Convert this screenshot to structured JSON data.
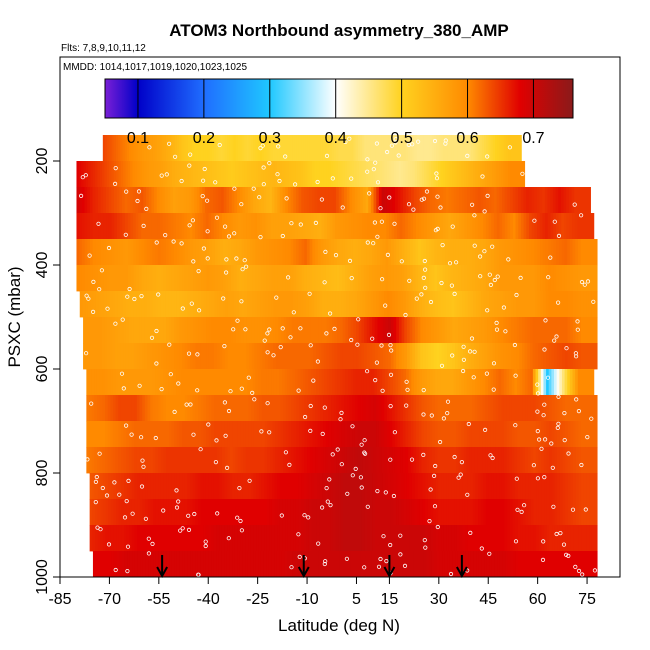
{
  "chart_data": {
    "type": "heatmap",
    "title": "ATOM3 Northbound asymmetry_380_AMP",
    "flights_label": "Flts: 7,8,9,10,11,12",
    "dates_label": "MMDD: 1014,1017,1019,1020,1023,1025",
    "xlabel": "Latitude (deg N)",
    "ylabel": "PSXC (mbar)",
    "xlim": [
      -85,
      85
    ],
    "ylim": [
      1000,
      0
    ],
    "x_ticks": [
      -85,
      -70,
      -55,
      -40,
      -25,
      -10,
      5,
      15,
      30,
      45,
      60,
      75
    ],
    "y_ticks": [
      200,
      400,
      600,
      800,
      1000
    ],
    "colorbar": {
      "range": [
        0.05,
        0.76
      ],
      "ticks": [
        0.1,
        0.2,
        0.3,
        0.4,
        0.5,
        0.6,
        0.7
      ],
      "stops": [
        {
          "v": 0.05,
          "color": "#7a1fd6"
        },
        {
          "v": 0.1,
          "color": "#0000c8"
        },
        {
          "v": 0.2,
          "color": "#1f6dff"
        },
        {
          "v": 0.3,
          "color": "#1fc8ff"
        },
        {
          "v": 0.4,
          "color": "#ffffff"
        },
        {
          "v": 0.5,
          "color": "#ffd21f"
        },
        {
          "v": 0.6,
          "color": "#ff8a00"
        },
        {
          "v": 0.68,
          "color": "#e00000"
        },
        {
          "v": 0.76,
          "color": "#8b1a1a"
        }
      ]
    },
    "pressure_levels": [
      175,
      225,
      275,
      325,
      375,
      425,
      475,
      525,
      575,
      625,
      675,
      725,
      775,
      825,
      875,
      925,
      975
    ],
    "level_extents": [
      [
        -72,
        55
      ],
      [
        -80,
        56
      ],
      [
        -80,
        76
      ],
      [
        -80,
        77
      ],
      [
        -80,
        78
      ],
      [
        -80,
        78
      ],
      [
        -79,
        78
      ],
      [
        -78,
        78
      ],
      [
        -78,
        78
      ],
      [
        -77,
        77
      ],
      [
        -77,
        78
      ],
      [
        -77,
        78
      ],
      [
        -77,
        78
      ],
      [
        -76,
        78
      ],
      [
        -76,
        78
      ],
      [
        -76,
        78
      ],
      [
        -75,
        78
      ]
    ],
    "arrows_latitude": [
      -54,
      -11,
      15,
      37
    ],
    "values": [
      [
        0.64,
        0.62,
        0.6,
        0.58,
        0.57,
        0.55,
        0.52,
        0.5,
        0.5,
        0.49,
        0.5,
        0.49,
        0.5,
        0.49,
        0.49,
        0.49,
        0.49,
        0.49,
        0.48,
        0.48,
        0.46,
        0.46,
        0.46,
        0.46,
        0.45,
        0.45,
        0.46,
        0.46,
        0.46,
        0.48,
        0.5,
        0.52
      ],
      [
        0.68,
        0.66,
        0.64,
        0.62,
        0.6,
        0.58,
        0.57,
        0.55,
        0.54,
        0.53,
        0.52,
        0.51,
        0.52,
        0.53,
        0.54,
        0.53,
        0.52,
        0.5,
        0.5,
        0.49,
        0.48,
        0.47,
        0.46,
        0.45,
        0.46,
        0.48,
        0.5,
        0.52,
        0.54,
        0.56,
        0.58,
        0.6
      ],
      [
        0.69,
        0.66,
        0.64,
        0.62,
        0.63,
        0.6,
        0.57,
        0.58,
        0.62,
        0.63,
        0.6,
        0.56,
        0.54,
        0.6,
        0.63,
        0.64,
        0.64,
        0.6,
        0.56,
        0.7,
        0.67,
        0.64,
        0.62,
        0.61,
        0.62,
        0.63,
        0.62,
        0.64,
        0.66,
        0.65,
        0.67,
        0.65
      ],
      [
        0.67,
        0.66,
        0.66,
        0.64,
        0.62,
        0.62,
        0.61,
        0.6,
        0.62,
        0.6,
        0.58,
        0.59,
        0.57,
        0.57,
        0.56,
        0.55,
        0.58,
        0.59,
        0.6,
        0.6,
        0.62,
        0.6,
        0.58,
        0.56,
        0.58,
        0.6,
        0.62,
        0.6,
        0.64,
        0.66,
        0.64,
        0.65
      ],
      [
        0.62,
        0.6,
        0.59,
        0.58,
        0.6,
        0.61,
        0.6,
        0.58,
        0.57,
        0.55,
        0.56,
        0.58,
        0.59,
        0.6,
        0.62,
        0.58,
        0.56,
        0.55,
        0.56,
        0.58,
        0.55,
        0.52,
        0.54,
        0.55,
        0.55,
        0.56,
        0.58,
        0.59,
        0.6,
        0.61,
        0.62,
        0.6
      ],
      [
        0.6,
        0.59,
        0.58,
        0.58,
        0.56,
        0.55,
        0.56,
        0.57,
        0.58,
        0.57,
        0.55,
        0.56,
        0.57,
        0.57,
        0.55,
        0.54,
        0.53,
        0.55,
        0.57,
        0.58,
        0.57,
        0.54,
        0.52,
        0.54,
        0.55,
        0.56,
        0.58,
        0.58,
        0.58,
        0.6,
        0.59,
        0.58
      ],
      [
        0.58,
        0.57,
        0.56,
        0.55,
        0.55,
        0.54,
        0.54,
        0.55,
        0.56,
        0.57,
        0.56,
        0.57,
        0.58,
        0.58,
        0.57,
        0.55,
        0.55,
        0.56,
        0.58,
        0.6,
        0.58,
        0.55,
        0.53,
        0.52,
        0.54,
        0.56,
        0.57,
        0.58,
        0.58,
        0.6,
        0.6,
        0.59
      ],
      [
        0.58,
        0.58,
        0.57,
        0.56,
        0.56,
        0.56,
        0.58,
        0.59,
        0.6,
        0.6,
        0.59,
        0.59,
        0.6,
        0.61,
        0.61,
        0.61,
        0.62,
        0.64,
        0.67,
        0.7,
        0.64,
        0.6,
        0.58,
        0.56,
        0.57,
        0.58,
        0.6,
        0.61,
        0.62,
        0.62,
        0.62,
        0.6
      ],
      [
        0.58,
        0.58,
        0.57,
        0.57,
        0.58,
        0.59,
        0.6,
        0.61,
        0.61,
        0.6,
        0.6,
        0.61,
        0.62,
        0.62,
        0.62,
        0.63,
        0.64,
        0.64,
        0.63,
        0.62,
        0.58,
        0.52,
        0.5,
        0.52,
        0.55,
        0.57,
        0.59,
        0.6,
        0.62,
        0.63,
        0.64,
        0.63
      ],
      [
        0.59,
        0.59,
        0.58,
        0.58,
        0.58,
        0.59,
        0.6,
        0.6,
        0.6,
        0.6,
        0.6,
        0.61,
        0.61,
        0.62,
        0.63,
        0.64,
        0.65,
        0.66,
        0.66,
        0.64,
        0.62,
        0.58,
        0.56,
        0.56,
        0.58,
        0.6,
        0.62,
        0.6,
        0.62,
        0.3,
        0.46,
        0.6
      ],
      [
        0.61,
        0.62,
        0.64,
        0.64,
        0.61,
        0.6,
        0.6,
        0.61,
        0.62,
        0.62,
        0.62,
        0.63,
        0.63,
        0.64,
        0.65,
        0.66,
        0.67,
        0.68,
        0.69,
        0.67,
        0.65,
        0.63,
        0.62,
        0.62,
        0.62,
        0.63,
        0.64,
        0.64,
        0.64,
        0.63,
        0.62,
        0.62
      ],
      [
        0.6,
        0.6,
        0.61,
        0.62,
        0.62,
        0.62,
        0.63,
        0.63,
        0.64,
        0.64,
        0.64,
        0.64,
        0.65,
        0.66,
        0.67,
        0.68,
        0.69,
        0.7,
        0.7,
        0.68,
        0.66,
        0.64,
        0.63,
        0.63,
        0.64,
        0.64,
        0.64,
        0.63,
        0.63,
        0.64,
        0.63,
        0.62
      ],
      [
        0.61,
        0.62,
        0.63,
        0.64,
        0.64,
        0.65,
        0.65,
        0.65,
        0.65,
        0.64,
        0.65,
        0.65,
        0.66,
        0.67,
        0.68,
        0.69,
        0.7,
        0.71,
        0.7,
        0.69,
        0.68,
        0.66,
        0.65,
        0.65,
        0.66,
        0.66,
        0.66,
        0.65,
        0.64,
        0.65,
        0.64,
        0.63
      ],
      [
        0.63,
        0.64,
        0.65,
        0.66,
        0.66,
        0.66,
        0.66,
        0.67,
        0.67,
        0.66,
        0.66,
        0.67,
        0.68,
        0.68,
        0.69,
        0.7,
        0.71,
        0.71,
        0.7,
        0.69,
        0.68,
        0.67,
        0.66,
        0.66,
        0.66,
        0.67,
        0.67,
        0.66,
        0.66,
        0.66,
        0.65,
        0.64
      ],
      [
        0.64,
        0.65,
        0.66,
        0.66,
        0.67,
        0.67,
        0.67,
        0.68,
        0.68,
        0.68,
        0.68,
        0.68,
        0.69,
        0.69,
        0.7,
        0.7,
        0.71,
        0.71,
        0.7,
        0.7,
        0.69,
        0.68,
        0.67,
        0.67,
        0.67,
        0.68,
        0.68,
        0.67,
        0.66,
        0.66,
        0.65,
        0.64
      ],
      [
        0.66,
        0.67,
        0.67,
        0.68,
        0.68,
        0.68,
        0.68,
        0.68,
        0.69,
        0.69,
        0.69,
        0.69,
        0.69,
        0.69,
        0.7,
        0.7,
        0.71,
        0.71,
        0.7,
        0.7,
        0.7,
        0.7,
        0.69,
        0.69,
        0.68,
        0.68,
        0.68,
        0.67,
        0.67,
        0.66,
        0.66,
        0.66
      ],
      [
        0.68,
        0.68,
        0.69,
        0.69,
        0.69,
        0.69,
        0.69,
        0.69,
        0.69,
        0.69,
        0.69,
        0.69,
        0.69,
        0.7,
        0.7,
        0.7,
        0.7,
        0.7,
        0.7,
        0.7,
        0.7,
        0.7,
        0.69,
        0.69,
        0.69,
        0.69,
        0.69,
        0.68,
        0.68,
        0.68,
        0.68,
        0.68
      ]
    ]
  }
}
